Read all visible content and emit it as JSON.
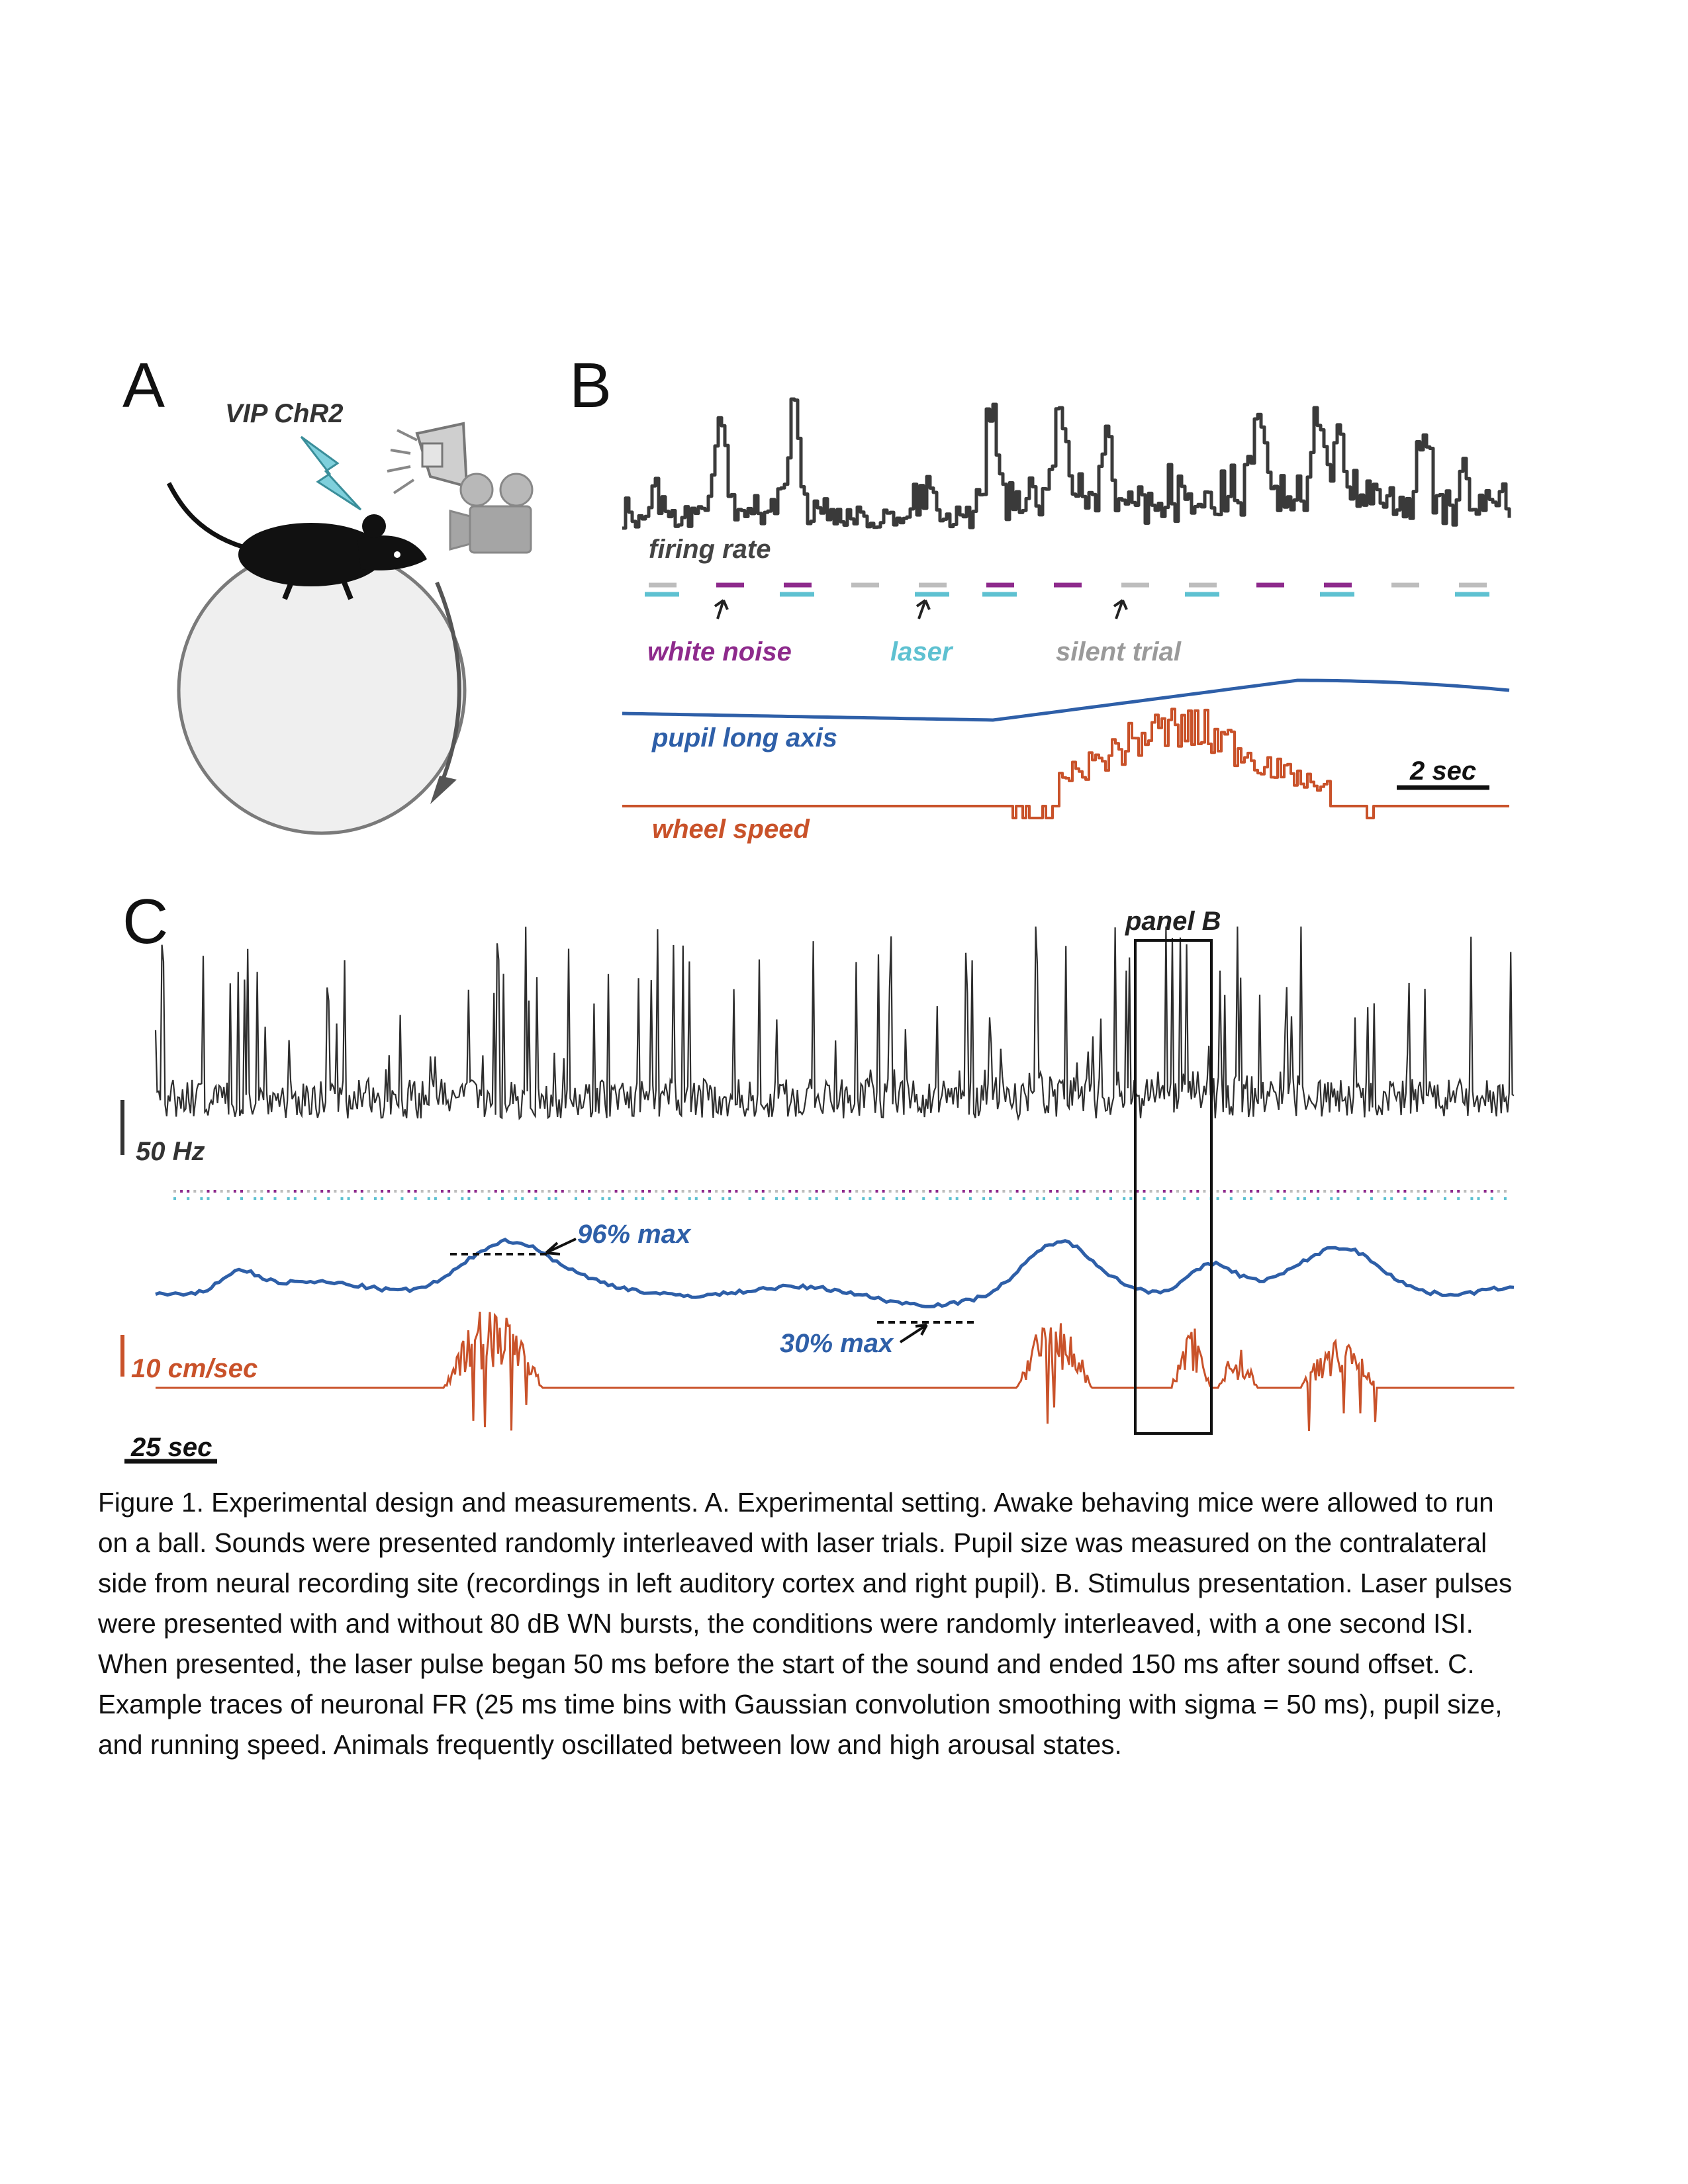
{
  "panels": {
    "a": {
      "letter": "A",
      "construct_label": "VIP ChR2"
    },
    "b": {
      "letter": "B",
      "firing_rate_label": "firing rate",
      "white_noise_label": "white noise",
      "laser_label": "laser",
      "silent_trial_label": "silent trial",
      "pupil_label": "pupil long axis",
      "wheel_label": "wheel speed",
      "scalebar_label": "2 sec"
    },
    "c": {
      "letter": "C",
      "inset_label": "panel B",
      "fr_scale_label": "50 Hz",
      "speed_scale_label": "10 cm/sec",
      "time_scale_label": "25 sec",
      "pupil_max_annotation": "96% max",
      "pupil_min_annotation": "30% max"
    }
  },
  "colors": {
    "firing_rate": "#3a3a3a",
    "white_noise": "#8e2a8c",
    "laser": "#5ec1d1",
    "silent": "#bdbdbd",
    "pupil": "#2e5fa8",
    "wheel": "#c9522a",
    "ball": "#efefef",
    "bolt": "#7fd0dc"
  },
  "trial_sequence": [
    "silent+laser",
    "noise",
    "noise+laser",
    "silent",
    "silent+laser",
    "noise+laser",
    "noise",
    "silent",
    "silent+laser",
    "noise",
    "noise+laser",
    "silent",
    "silent+laser"
  ],
  "caption": "Figure 1. Experimental design and measurements. A. Experimental setting. Awake behaving mice were allowed to run on a ball. Sounds were presented randomly interleaved with laser trials. Pupil size was measured on the contralateral side from neural recording site (recordings in left auditory cortex and right pupil). B. Stimulus presentation. Laser pulses were presented with and without 80 dB WN bursts, the conditions were randomly interleaved, with a one second ISI. When presented, the laser pulse began 50 ms before the start of the sound and ended 150 ms after sound offset. C. Example traces of neuronal FR (25 ms time bins with Gaussian convolution smoothing with sigma = 50 ms), pupil size, and running speed. Animals frequently oscillated between low and high arousal states."
}
